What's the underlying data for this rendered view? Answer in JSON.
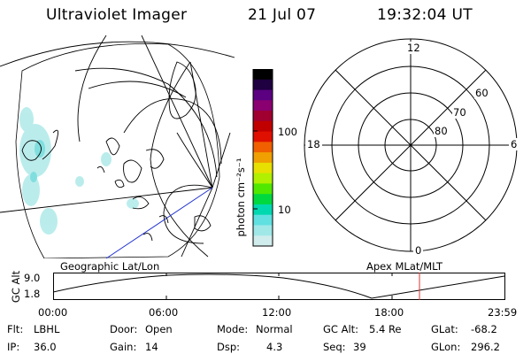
{
  "header": {
    "title": "Ultraviolet Imager",
    "date": "21 Jul 07",
    "time": "19:32:04 UT"
  },
  "colorbar": {
    "unit_label": "photon cm⁻²s⁻¹",
    "ticks": [
      "100",
      "10"
    ],
    "colors": [
      "#000000",
      "#1f0040",
      "#5a0080",
      "#8a0070",
      "#a00030",
      "#c00000",
      "#e01000",
      "#f06000",
      "#f0a000",
      "#e8e000",
      "#b0f000",
      "#50e800",
      "#00d840",
      "#00d8b0",
      "#60e0e0",
      "#a0e8e8",
      "#d0ecec"
    ]
  },
  "left_panel": {
    "caption": "Geographic Lat/Lon"
  },
  "polar_plot": {
    "caption": "Apex MLat/MLT",
    "mlt_labels": {
      "top": "12",
      "right": "6",
      "bottom": "0",
      "left": "18"
    },
    "lat_labels": [
      "60",
      "70",
      "80"
    ]
  },
  "altitude_plot": {
    "ylabel": "GC Alt",
    "yticks": [
      "9.0",
      "1.8"
    ],
    "xticks": [
      "00:00",
      "06:00",
      "12:00",
      "18:00",
      "23:59"
    ],
    "marker_color": "#e03030"
  },
  "info": {
    "col1": [
      {
        "key": "Flt:",
        "value": "LBHL"
      },
      {
        "key": "IP:",
        "value": "36.0"
      }
    ],
    "col2": [
      {
        "key": "Door:",
        "value": "Open"
      },
      {
        "key": "Gain:",
        "value": "14"
      }
    ],
    "col3": [
      {
        "key": "Mode:",
        "value": "Normal"
      },
      {
        "key": "Dsp:",
        "value": "4.3"
      }
    ],
    "col4": [
      {
        "key": "GC Alt:",
        "value": "5.4 Re"
      },
      {
        "key": "Seq:",
        "value": "39"
      }
    ],
    "col5": [
      {
        "key": "GLat:",
        "value": "-68.2"
      },
      {
        "key": "GLon:",
        "value": "296.2"
      }
    ]
  }
}
